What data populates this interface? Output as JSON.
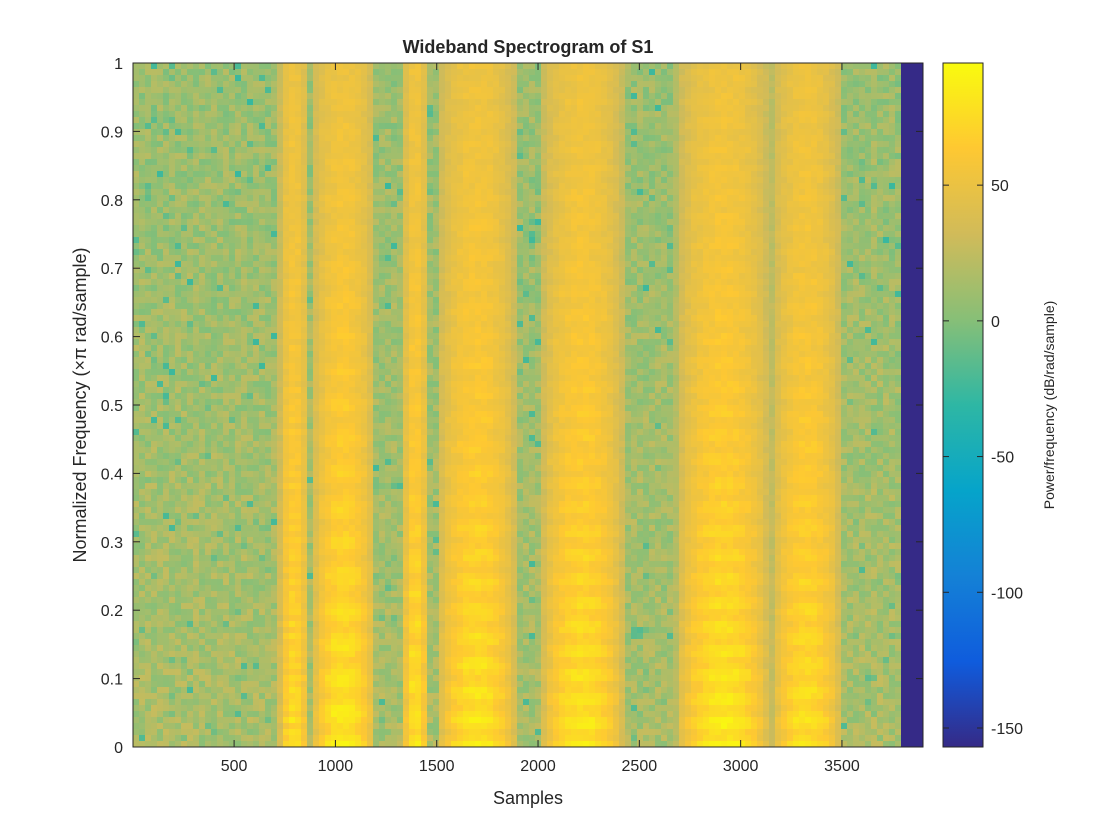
{
  "chart_data": {
    "type": "heatmap",
    "title": "Wideband Spectrogram of S1",
    "xlabel": "Samples",
    "ylabel": "Normalized Frequency  (×π rad/sample)",
    "xlim": [
      1,
      3900
    ],
    "ylim": [
      0,
      1
    ],
    "x_ticks": [
      500,
      1000,
      1500,
      2000,
      2500,
      3000,
      3500
    ],
    "x_tick_labels": [
      "500",
      "1000",
      "1500",
      "2000",
      "2500",
      "3000",
      "3500"
    ],
    "y_ticks": [
      0,
      0.1,
      0.2,
      0.3,
      0.4,
      0.5,
      0.6,
      0.7,
      0.8,
      0.9,
      1
    ],
    "y_tick_labels": [
      "0",
      "0.1",
      "0.2",
      "0.3",
      "0.4",
      "0.5",
      "0.6",
      "0.7",
      "0.8",
      "0.9",
      "1"
    ],
    "grid": false,
    "colorbar": {
      "label": "Power/frequency (dB/rad/sample)",
      "range": [
        -157,
        95
      ],
      "ticks": [
        50,
        0,
        -50,
        -100,
        -150
      ],
      "tick_labels": [
        "50",
        "0",
        "-50",
        "-100",
        "-150"
      ],
      "colormap": "parula"
    },
    "noise_floor_db": 15,
    "no_data_region": {
      "x_start": 3790,
      "x_end": 3900,
      "value_db": -157
    },
    "voiced_segments": [
      {
        "x_start": 720,
        "x_end": 870,
        "peak_db": 85,
        "f0": 0.02
      },
      {
        "x_start": 880,
        "x_end": 1200,
        "peak_db": 92,
        "f0": 0.05
      },
      {
        "x_start": 1330,
        "x_end": 1460,
        "peak_db": 88,
        "f0": 0.045
      },
      {
        "x_start": 1500,
        "x_end": 1900,
        "peak_db": 90,
        "f0": 0.04
      },
      {
        "x_start": 2010,
        "x_end": 2430,
        "peak_db": 90,
        "f0": 0.035
      },
      {
        "x_start": 2680,
        "x_end": 3150,
        "peak_db": 93,
        "f0": 0.035
      },
      {
        "x_start": 3150,
        "x_end": 3500,
        "peak_db": 86,
        "f0": 0.04
      }
    ],
    "colors": {
      "colorbar_min": "#352a87",
      "colorbar_mid": "#38b5a1",
      "colorbar_max": "#f9fb0e",
      "axis": "#262626"
    }
  }
}
